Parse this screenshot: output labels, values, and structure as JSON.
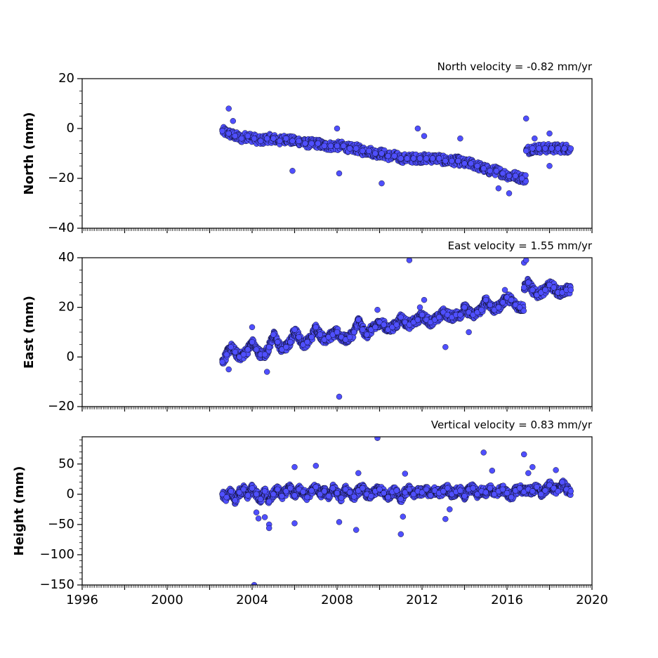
{
  "chart_data": [
    {
      "type": "scatter",
      "title": "North velocity = -0.82 mm/yr",
      "ylabel": "North (mm)",
      "xlabel": "",
      "xlim": [
        1996,
        2020
      ],
      "ylim": [
        -40,
        20
      ],
      "yticks": [
        20,
        0,
        -20,
        -40
      ],
      "ytick_labels": [
        "20",
        "0",
        "−20",
        "−40"
      ],
      "x_tick_labels_shown": false,
      "velocity_mm_per_yr": -0.82,
      "marker_color": "#4f4fff",
      "series": [
        {
          "x": [
            2002.6,
            2002.9,
            2003.2,
            2003.5,
            2003.8,
            2004.1,
            2004.4,
            2004.7,
            2005.0,
            2005.3,
            2005.6,
            2005.9,
            2006.2,
            2006.5,
            2006.8,
            2007.1,
            2007.4,
            2007.7,
            2008.0,
            2008.3,
            2008.6,
            2008.9,
            2009.2,
            2009.5,
            2009.8,
            2010.1,
            2010.4,
            2010.7,
            2011.0,
            2011.3,
            2011.6,
            2011.9,
            2012.2,
            2012.5,
            2012.8,
            2013.1,
            2013.4,
            2013.7,
            2014.0,
            2014.3,
            2014.6,
            2014.9,
            2015.2,
            2015.5,
            2015.8,
            2016.1,
            2016.4,
            2016.7,
            2016.9,
            2017.2,
            2017.5,
            2017.8,
            2018.1,
            2018.4,
            2018.7,
            2019.0
          ],
          "y": [
            -1,
            -2,
            -3,
            -4,
            -3,
            -4,
            -5,
            -4,
            -4,
            -5,
            -4,
            -5,
            -5,
            -6,
            -6,
            -6,
            -7,
            -7,
            -7,
            -7,
            -8,
            -8,
            -9,
            -9,
            -10,
            -10,
            -11,
            -11,
            -12,
            -12,
            -12,
            -12,
            -12,
            -12,
            -12,
            -13,
            -13,
            -13,
            -14,
            -14,
            -15,
            -16,
            -17,
            -17,
            -18,
            -19,
            -19,
            -20,
            -9,
            -8,
            -8,
            -8,
            -8,
            -8,
            -8,
            -8
          ]
        },
        {
          "x": [
            2002.9,
            2003.1,
            2005.9,
            2008.0,
            2008.1,
            2010.1,
            2011.8,
            2012.1,
            2013.8,
            2015.6,
            2016.1,
            2016.9,
            2017.3,
            2018.0,
            2018.0
          ],
          "y": [
            8,
            3,
            -17,
            0,
            -18,
            -22,
            0,
            -3,
            -4,
            -24,
            -26,
            4,
            -4,
            -2,
            -15
          ]
        }
      ]
    },
    {
      "type": "scatter",
      "title": "East velocity = 1.55 mm/yr",
      "ylabel": "East (mm)",
      "xlabel": "",
      "xlim": [
        1996,
        2020
      ],
      "ylim": [
        -20,
        40
      ],
      "yticks": [
        40,
        20,
        0,
        -20
      ],
      "ytick_labels": [
        "40",
        "20",
        "0",
        "−20"
      ],
      "x_tick_labels_shown": false,
      "velocity_mm_per_yr": 1.55,
      "marker_color": "#4f4fff",
      "series": [
        {
          "x": [
            2002.6,
            2002.8,
            2003.0,
            2003.2,
            2003.4,
            2003.6,
            2003.8,
            2004.0,
            2004.2,
            2004.4,
            2004.6,
            2004.8,
            2005.0,
            2005.2,
            2005.4,
            2005.6,
            2005.8,
            2006.0,
            2006.2,
            2006.4,
            2006.6,
            2006.8,
            2007.0,
            2007.2,
            2007.4,
            2007.6,
            2007.8,
            2008.0,
            2008.2,
            2008.4,
            2008.6,
            2008.8,
            2009.0,
            2009.2,
            2009.4,
            2009.6,
            2009.8,
            2010.0,
            2010.2,
            2010.4,
            2010.6,
            2010.8,
            2011.0,
            2011.2,
            2011.4,
            2011.6,
            2011.8,
            2012.0,
            2012.2,
            2012.4,
            2012.6,
            2012.8,
            2013.0,
            2013.2,
            2013.4,
            2013.6,
            2013.8,
            2014.0,
            2014.2,
            2014.4,
            2014.6,
            2014.8,
            2015.0,
            2015.2,
            2015.4,
            2015.6,
            2015.8,
            2016.0,
            2016.2,
            2016.4,
            2016.6,
            2016.8,
            2017.0,
            2017.2,
            2017.4,
            2017.6,
            2017.8,
            2018.0,
            2018.2,
            2018.4,
            2018.6,
            2018.8,
            2019.0
          ],
          "y": [
            -2,
            1,
            4,
            2,
            0,
            1,
            3,
            6,
            3,
            1,
            1,
            4,
            9,
            6,
            3,
            4,
            6,
            11,
            8,
            5,
            6,
            8,
            12,
            9,
            7,
            8,
            9,
            10,
            8,
            7,
            8,
            10,
            15,
            11,
            9,
            11,
            12,
            14,
            13,
            11,
            12,
            13,
            16,
            14,
            13,
            14,
            15,
            17,
            15,
            14,
            15,
            16,
            18,
            17,
            16,
            17,
            17,
            20,
            18,
            17,
            18,
            19,
            23,
            21,
            19,
            20,
            22,
            24,
            23,
            21,
            20,
            28,
            30,
            27,
            25,
            26,
            27,
            29,
            28,
            26,
            26,
            27,
            27
          ]
        },
        {
          "x": [
            2002.9,
            2004.0,
            2004.7,
            2008.1,
            2009.9,
            2011.4,
            2011.9,
            2012.1,
            2013.1,
            2014.2,
            2015.9,
            2016.8,
            2016.9
          ],
          "y": [
            -5,
            12,
            -6,
            -16,
            19,
            39,
            20,
            23,
            4,
            10,
            27,
            38,
            39
          ]
        }
      ]
    },
    {
      "type": "scatter",
      "title": "Vertical velocity = 0.83 mm/yr",
      "ylabel": "Height (mm)",
      "xlabel": "",
      "xlim": [
        1996,
        2020
      ],
      "ylim": [
        -150,
        95
      ],
      "yticks": [
        50,
        0,
        -50,
        -100,
        -150
      ],
      "ytick_labels": [
        "50",
        "0",
        "−50",
        "−100",
        "−150"
      ],
      "xticks": [
        1996,
        2000,
        2004,
        2008,
        2012,
        2016,
        2020
      ],
      "xtick_labels": [
        "1996",
        "2000",
        "2004",
        "2008",
        "2012",
        "2016",
        "2020"
      ],
      "velocity_mm_per_yr": 0.83,
      "marker_color": "#4f4fff",
      "series": [
        {
          "x": [
            2002.6,
            2002.8,
            2003.0,
            2003.2,
            2003.4,
            2003.6,
            2003.8,
            2004.0,
            2004.2,
            2004.4,
            2004.6,
            2004.8,
            2005.0,
            2005.2,
            2005.4,
            2005.6,
            2005.8,
            2006.0,
            2006.2,
            2006.4,
            2006.6,
            2006.8,
            2007.0,
            2007.2,
            2007.4,
            2007.6,
            2007.8,
            2008.0,
            2008.2,
            2008.4,
            2008.6,
            2008.8,
            2009.0,
            2009.2,
            2009.4,
            2009.6,
            2009.8,
            2010.0,
            2010.2,
            2010.4,
            2010.6,
            2010.8,
            2011.0,
            2011.2,
            2011.4,
            2011.6,
            2011.8,
            2012.0,
            2012.2,
            2012.4,
            2012.6,
            2012.8,
            2013.0,
            2013.2,
            2013.4,
            2013.6,
            2013.8,
            2014.0,
            2014.2,
            2014.4,
            2014.6,
            2014.8,
            2015.0,
            2015.2,
            2015.4,
            2015.6,
            2015.8,
            2016.0,
            2016.2,
            2016.4,
            2016.6,
            2016.8,
            2017.0,
            2017.2,
            2017.4,
            2017.6,
            2017.8,
            2018.0,
            2018.2,
            2018.4,
            2018.6,
            2018.8,
            2019.0
          ],
          "y": [
            0,
            -5,
            5,
            -10,
            3,
            8,
            -2,
            10,
            0,
            -8,
            5,
            -12,
            0,
            8,
            -3,
            5,
            10,
            -2,
            8,
            4,
            -5,
            6,
            12,
            0,
            5,
            -3,
            10,
            2,
            -6,
            8,
            3,
            -4,
            6,
            10,
            0,
            -3,
            5,
            8,
            2,
            -5,
            4,
            6,
            -8,
            3,
            8,
            0,
            5,
            3,
            8,
            -2,
            6,
            2,
            5,
            10,
            0,
            4,
            6,
            -3,
            8,
            10,
            0,
            5,
            3,
            10,
            0,
            5,
            8,
            2,
            -5,
            6,
            10,
            4,
            8,
            5,
            12,
            0,
            6,
            15,
            10,
            5,
            20,
            8,
            5
          ]
        },
        {
          "x": [
            2004.2,
            2004.3,
            2004.6,
            2004.8,
            2004.8,
            2006.0,
            2006.0,
            2007.0,
            2008.1,
            2008.9,
            2009.0,
            2009.9,
            2011.0,
            2011.1,
            2011.2,
            2013.1,
            2013.3,
            2014.9,
            2015.3,
            2016.8,
            2017.0,
            2017.2,
            2018.3,
            2004.1
          ],
          "y": [
            -30,
            -40,
            -38,
            -50,
            -56,
            45,
            -48,
            47,
            -46,
            -59,
            35,
            93,
            -66,
            -37,
            34,
            -41,
            -25,
            69,
            39,
            66,
            35,
            45,
            40,
            -150
          ]
        }
      ]
    }
  ]
}
